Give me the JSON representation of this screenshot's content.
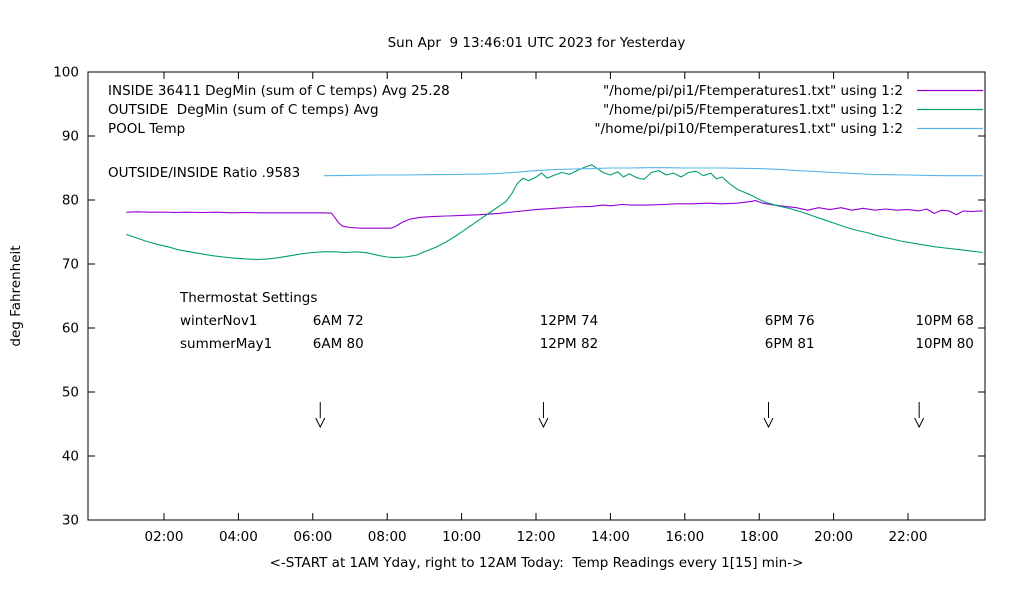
{
  "page": {
    "title": "Sun Apr  9 13:46:01 UTC 2023 for Yesterday"
  },
  "chart_data": {
    "type": "line",
    "title": "Sun Apr  9 13:46:01 UTC 2023 for Yesterday",
    "xlabel": "<-START at 1AM Yday, right to 12AM Today:  Temp Readings every 1[15] min->",
    "ylabel": "deg Fahrenheit",
    "xlim": [
      1,
      24
    ],
    "ylim": [
      30,
      100
    ],
    "grid": false,
    "x_ticks": [
      {
        "v": 2,
        "label": "02:00"
      },
      {
        "v": 4,
        "label": "04:00"
      },
      {
        "v": 6,
        "label": "06:00"
      },
      {
        "v": 8,
        "label": "08:00"
      },
      {
        "v": 10,
        "label": "10:00"
      },
      {
        "v": 12,
        "label": "12:00"
      },
      {
        "v": 14,
        "label": "14:00"
      },
      {
        "v": 16,
        "label": "16:00"
      },
      {
        "v": 18,
        "label": "18:00"
      },
      {
        "v": 20,
        "label": "20:00"
      },
      {
        "v": 22,
        "label": "22:00"
      }
    ],
    "y_ticks": [
      {
        "v": 30,
        "label": "30"
      },
      {
        "v": 40,
        "label": "40"
      },
      {
        "v": 50,
        "label": "50"
      },
      {
        "v": 60,
        "label": "60"
      },
      {
        "v": 70,
        "label": "70"
      },
      {
        "v": 80,
        "label": "80"
      },
      {
        "v": 90,
        "label": "90"
      },
      {
        "v": 100,
        "label": "100"
      }
    ],
    "series": [
      {
        "name": "INSIDE",
        "color": "#9400d3",
        "points": [
          [
            1.0,
            78.1
          ],
          [
            1.3,
            78.15
          ],
          [
            1.6,
            78.1
          ],
          [
            2.0,
            78.1
          ],
          [
            2.3,
            78.05
          ],
          [
            2.6,
            78.1
          ],
          [
            3.0,
            78.05
          ],
          [
            3.4,
            78.1
          ],
          [
            3.8,
            78.0
          ],
          [
            4.2,
            78.05
          ],
          [
            4.6,
            78.0
          ],
          [
            5.0,
            78.0
          ],
          [
            5.4,
            78.0
          ],
          [
            5.8,
            78.0
          ],
          [
            6.2,
            78.0
          ],
          [
            6.5,
            77.95
          ],
          [
            6.6,
            77.2
          ],
          [
            6.7,
            76.4
          ],
          [
            6.8,
            75.9
          ],
          [
            7.0,
            75.7
          ],
          [
            7.3,
            75.6
          ],
          [
            7.6,
            75.6
          ],
          [
            7.9,
            75.6
          ],
          [
            8.1,
            75.6
          ],
          [
            8.2,
            75.8
          ],
          [
            8.4,
            76.5
          ],
          [
            8.6,
            77.0
          ],
          [
            8.9,
            77.3
          ],
          [
            9.2,
            77.4
          ],
          [
            9.6,
            77.5
          ],
          [
            10.0,
            77.6
          ],
          [
            10.5,
            77.7
          ],
          [
            11.0,
            77.9
          ],
          [
            11.5,
            78.2
          ],
          [
            12.0,
            78.5
          ],
          [
            12.5,
            78.7
          ],
          [
            13.0,
            78.9
          ],
          [
            13.5,
            79.0
          ],
          [
            13.8,
            79.2
          ],
          [
            14.0,
            79.1
          ],
          [
            14.3,
            79.3
          ],
          [
            14.6,
            79.2
          ],
          [
            15.0,
            79.2
          ],
          [
            15.4,
            79.3
          ],
          [
            15.8,
            79.4
          ],
          [
            16.2,
            79.4
          ],
          [
            16.6,
            79.5
          ],
          [
            17.0,
            79.4
          ],
          [
            17.4,
            79.5
          ],
          [
            17.8,
            79.8
          ],
          [
            17.9,
            79.9
          ],
          [
            18.1,
            79.5
          ],
          [
            18.4,
            79.2
          ],
          [
            18.7,
            79.0
          ],
          [
            19.0,
            78.8
          ],
          [
            19.3,
            78.4
          ],
          [
            19.6,
            78.8
          ],
          [
            19.9,
            78.5
          ],
          [
            20.2,
            78.8
          ],
          [
            20.5,
            78.4
          ],
          [
            20.8,
            78.7
          ],
          [
            21.1,
            78.4
          ],
          [
            21.4,
            78.6
          ],
          [
            21.7,
            78.4
          ],
          [
            22.0,
            78.5
          ],
          [
            22.3,
            78.3
          ],
          [
            22.5,
            78.6
          ],
          [
            22.7,
            77.9
          ],
          [
            22.9,
            78.4
          ],
          [
            23.1,
            78.3
          ],
          [
            23.3,
            77.7
          ],
          [
            23.5,
            78.3
          ],
          [
            23.7,
            78.2
          ],
          [
            24.0,
            78.3
          ]
        ]
      },
      {
        "name": "OUTSIDE",
        "color": "#009e73",
        "points": [
          [
            1.0,
            74.6
          ],
          [
            1.2,
            74.2
          ],
          [
            1.5,
            73.6
          ],
          [
            1.8,
            73.1
          ],
          [
            2.1,
            72.7
          ],
          [
            2.4,
            72.2
          ],
          [
            2.7,
            71.9
          ],
          [
            3.0,
            71.6
          ],
          [
            3.3,
            71.3
          ],
          [
            3.6,
            71.1
          ],
          [
            3.9,
            70.9
          ],
          [
            4.2,
            70.8
          ],
          [
            4.5,
            70.7
          ],
          [
            4.8,
            70.8
          ],
          [
            5.1,
            71.0
          ],
          [
            5.4,
            71.3
          ],
          [
            5.7,
            71.6
          ],
          [
            6.0,
            71.8
          ],
          [
            6.3,
            71.9
          ],
          [
            6.6,
            71.9
          ],
          [
            6.9,
            71.8
          ],
          [
            7.2,
            71.9
          ],
          [
            7.5,
            71.7
          ],
          [
            7.8,
            71.3
          ],
          [
            8.0,
            71.1
          ],
          [
            8.2,
            71.0
          ],
          [
            8.5,
            71.1
          ],
          [
            8.8,
            71.4
          ],
          [
            9.0,
            71.9
          ],
          [
            9.3,
            72.6
          ],
          [
            9.6,
            73.5
          ],
          [
            9.9,
            74.6
          ],
          [
            10.2,
            75.8
          ],
          [
            10.5,
            77.0
          ],
          [
            10.8,
            78.2
          ],
          [
            11.0,
            79.0
          ],
          [
            11.2,
            79.8
          ],
          [
            11.35,
            81.0
          ],
          [
            11.5,
            82.6
          ],
          [
            11.65,
            83.4
          ],
          [
            11.8,
            83.0
          ],
          [
            12.0,
            83.6
          ],
          [
            12.15,
            84.2
          ],
          [
            12.3,
            83.4
          ],
          [
            12.5,
            83.9
          ],
          [
            12.7,
            84.3
          ],
          [
            12.9,
            84.0
          ],
          [
            13.1,
            84.6
          ],
          [
            13.3,
            85.1
          ],
          [
            13.5,
            85.5
          ],
          [
            13.65,
            84.9
          ],
          [
            13.8,
            84.3
          ],
          [
            14.0,
            83.9
          ],
          [
            14.2,
            84.4
          ],
          [
            14.35,
            83.6
          ],
          [
            14.5,
            84.1
          ],
          [
            14.7,
            83.5
          ],
          [
            14.9,
            83.2
          ],
          [
            15.1,
            84.3
          ],
          [
            15.3,
            84.6
          ],
          [
            15.5,
            83.9
          ],
          [
            15.7,
            84.2
          ],
          [
            15.9,
            83.6
          ],
          [
            16.1,
            84.3
          ],
          [
            16.3,
            84.5
          ],
          [
            16.5,
            83.8
          ],
          [
            16.7,
            84.2
          ],
          [
            16.85,
            83.3
          ],
          [
            17.0,
            83.6
          ],
          [
            17.2,
            82.6
          ],
          [
            17.4,
            81.7
          ],
          [
            17.6,
            81.2
          ],
          [
            17.8,
            80.7
          ],
          [
            18.0,
            80.1
          ],
          [
            18.2,
            79.6
          ],
          [
            18.5,
            79.1
          ],
          [
            18.8,
            78.7
          ],
          [
            19.1,
            78.2
          ],
          [
            19.4,
            77.6
          ],
          [
            19.7,
            77.0
          ],
          [
            20.0,
            76.4
          ],
          [
            20.3,
            75.8
          ],
          [
            20.6,
            75.3
          ],
          [
            20.9,
            74.9
          ],
          [
            21.2,
            74.4
          ],
          [
            21.5,
            74.0
          ],
          [
            21.8,
            73.6
          ],
          [
            22.1,
            73.3
          ],
          [
            22.4,
            73.0
          ],
          [
            22.7,
            72.7
          ],
          [
            23.0,
            72.5
          ],
          [
            23.3,
            72.3
          ],
          [
            23.6,
            72.1
          ],
          [
            24.0,
            71.8
          ]
        ]
      },
      {
        "name": "POOL",
        "color": "#56b4e9",
        "points": [
          [
            6.3,
            83.8
          ],
          [
            7.0,
            83.85
          ],
          [
            7.7,
            83.9
          ],
          [
            8.4,
            83.9
          ],
          [
            9.1,
            83.95
          ],
          [
            9.8,
            84.0
          ],
          [
            10.5,
            84.05
          ],
          [
            11.0,
            84.15
          ],
          [
            11.5,
            84.35
          ],
          [
            12.0,
            84.6
          ],
          [
            12.5,
            84.75
          ],
          [
            13.0,
            84.85
          ],
          [
            13.5,
            84.9
          ],
          [
            14.0,
            85.0
          ],
          [
            14.5,
            85.0
          ],
          [
            15.0,
            85.05
          ],
          [
            15.5,
            85.05
          ],
          [
            16.0,
            85.0
          ],
          [
            16.5,
            85.0
          ],
          [
            17.0,
            85.0
          ],
          [
            17.5,
            84.95
          ],
          [
            18.0,
            84.9
          ],
          [
            18.5,
            84.8
          ],
          [
            19.0,
            84.6
          ],
          [
            19.5,
            84.45
          ],
          [
            20.0,
            84.3
          ],
          [
            20.5,
            84.15
          ],
          [
            21.0,
            84.0
          ],
          [
            21.5,
            83.95
          ],
          [
            22.0,
            83.9
          ],
          [
            22.5,
            83.85
          ],
          [
            23.0,
            83.8
          ],
          [
            23.5,
            83.8
          ],
          [
            24.0,
            83.8
          ]
        ]
      }
    ],
    "legend_left": [
      "INSIDE 36411 DegMin (sum of C temps) Avg 25.28",
      "OUTSIDE  DegMin (sum of C temps) Avg",
      "POOL Temp"
    ],
    "ratio_label": "OUTSIDE/INSIDE Ratio .9583",
    "legend_right": [
      {
        "label": "\"/home/pi/pi1/Ftemperatures1.txt\" using 1:2",
        "color": "#9400d3"
      },
      {
        "label": "\"/home/pi/pi5/Ftemperatures1.txt\" using 1:2",
        "color": "#009e73"
      },
      {
        "label": "\"/home/pi/pi10/Ftemperatures1.txt\" using 1:2",
        "color": "#56b4e9"
      }
    ],
    "thermostat": {
      "title": "Thermostat Settings",
      "rows": [
        {
          "name": "winterNov1",
          "settings": [
            "6AM 72",
            "12PM 74",
            "6PM 76",
            "10PM 68"
          ]
        },
        {
          "name": "summerMay1",
          "settings": [
            "6AM 80",
            "12PM 82",
            "6PM 81",
            "10PM 80"
          ]
        }
      ],
      "columns_h": [
        6.0,
        12.1,
        18.15,
        22.2
      ]
    },
    "arrows_h": [
      6.2,
      12.2,
      18.25,
      22.3
    ],
    "legend_position": "top",
    "axis_color": "#000000"
  }
}
